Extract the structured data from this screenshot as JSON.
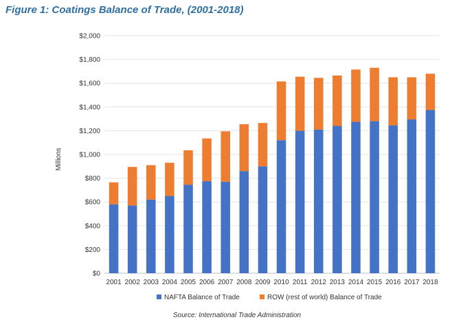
{
  "figure": {
    "title": "Figure 1: Coatings Balance of Trade, (2001-2018)",
    "source": "Source: International Trade Administration"
  },
  "chart_data": {
    "type": "bar",
    "stacked": true,
    "title": "",
    "xlabel": "",
    "ylabel": "Millions",
    "ylim": [
      0,
      2000
    ],
    "yticks": [
      0,
      200,
      400,
      600,
      800,
      1000,
      1200,
      1400,
      1600,
      1800,
      2000
    ],
    "ytick_labels": [
      "$0",
      "$200",
      "$400",
      "$600",
      "$800",
      "$1,000",
      "$1,200",
      "$1,400",
      "$1,600",
      "$1,800",
      "$2,000"
    ],
    "grid": true,
    "legend_position": "bottom",
    "categories": [
      "2001",
      "2002",
      "2003",
      "2004",
      "2005",
      "2006",
      "2007",
      "2008",
      "2009",
      "2010",
      "2011",
      "2012",
      "2013",
      "2014",
      "2015",
      "2016",
      "2017",
      "2018"
    ],
    "series": [
      {
        "name": "NAFTA Balance of Trade",
        "color": "#4472c4",
        "values": [
          580,
          570,
          620,
          650,
          745,
          775,
          770,
          860,
          900,
          1120,
          1200,
          1210,
          1240,
          1275,
          1280,
          1245,
          1295,
          1375
        ]
      },
      {
        "name": "ROW (rest of world) Balance of Trade",
        "color": "#ed7d31",
        "values": [
          185,
          325,
          290,
          280,
          290,
          360,
          425,
          395,
          365,
          495,
          455,
          435,
          425,
          440,
          450,
          405,
          355,
          305
        ]
      }
    ]
  }
}
